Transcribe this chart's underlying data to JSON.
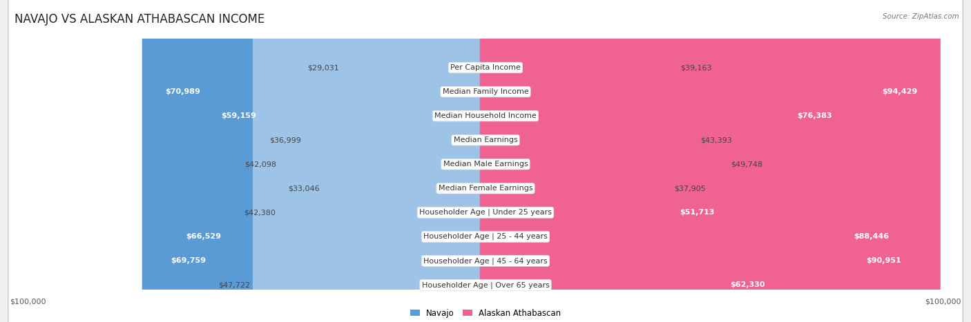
{
  "title": "NAVAJO VS ALASKAN ATHABASCAN INCOME",
  "source": "Source: ZipAtlas.com",
  "categories": [
    "Per Capita Income",
    "Median Family Income",
    "Median Household Income",
    "Median Earnings",
    "Median Male Earnings",
    "Median Female Earnings",
    "Householder Age | Under 25 years",
    "Householder Age | 25 - 44 years",
    "Householder Age | 45 - 64 years",
    "Householder Age | Over 65 years"
  ],
  "navajo_values": [
    29031,
    70989,
    59159,
    36999,
    42098,
    33046,
    42380,
    66529,
    69759,
    47722
  ],
  "alaskan_values": [
    39163,
    94429,
    76383,
    43393,
    49748,
    37905,
    51713,
    88446,
    90951,
    62330
  ],
  "navajo_labels": [
    "$29,031",
    "$70,989",
    "$59,159",
    "$36,999",
    "$42,098",
    "$33,046",
    "$42,380",
    "$66,529",
    "$69,759",
    "$47,722"
  ],
  "alaskan_labels": [
    "$39,163",
    "$94,429",
    "$76,383",
    "$43,393",
    "$49,748",
    "$37,905",
    "$51,713",
    "$88,446",
    "$90,951",
    "$62,330"
  ],
  "navajo_color_full": "#5b9bd5",
  "navajo_color_light": "#9dc3e6",
  "alaskan_color_full": "#f06292",
  "alaskan_color_light": "#f4a0bf",
  "max_value": 100000,
  "xlabel_left": "$100,000",
  "xlabel_right": "$100,000",
  "legend_navajo": "Navajo",
  "legend_alaskan": "Alaskan Athabascan",
  "background_color": "#f0f0f0",
  "row_background": "#ffffff",
  "row_border": "#cccccc",
  "title_fontsize": 12,
  "label_fontsize": 8,
  "category_fontsize": 8,
  "navajo_full_threshold": 50000,
  "alaskan_full_threshold": 50000
}
